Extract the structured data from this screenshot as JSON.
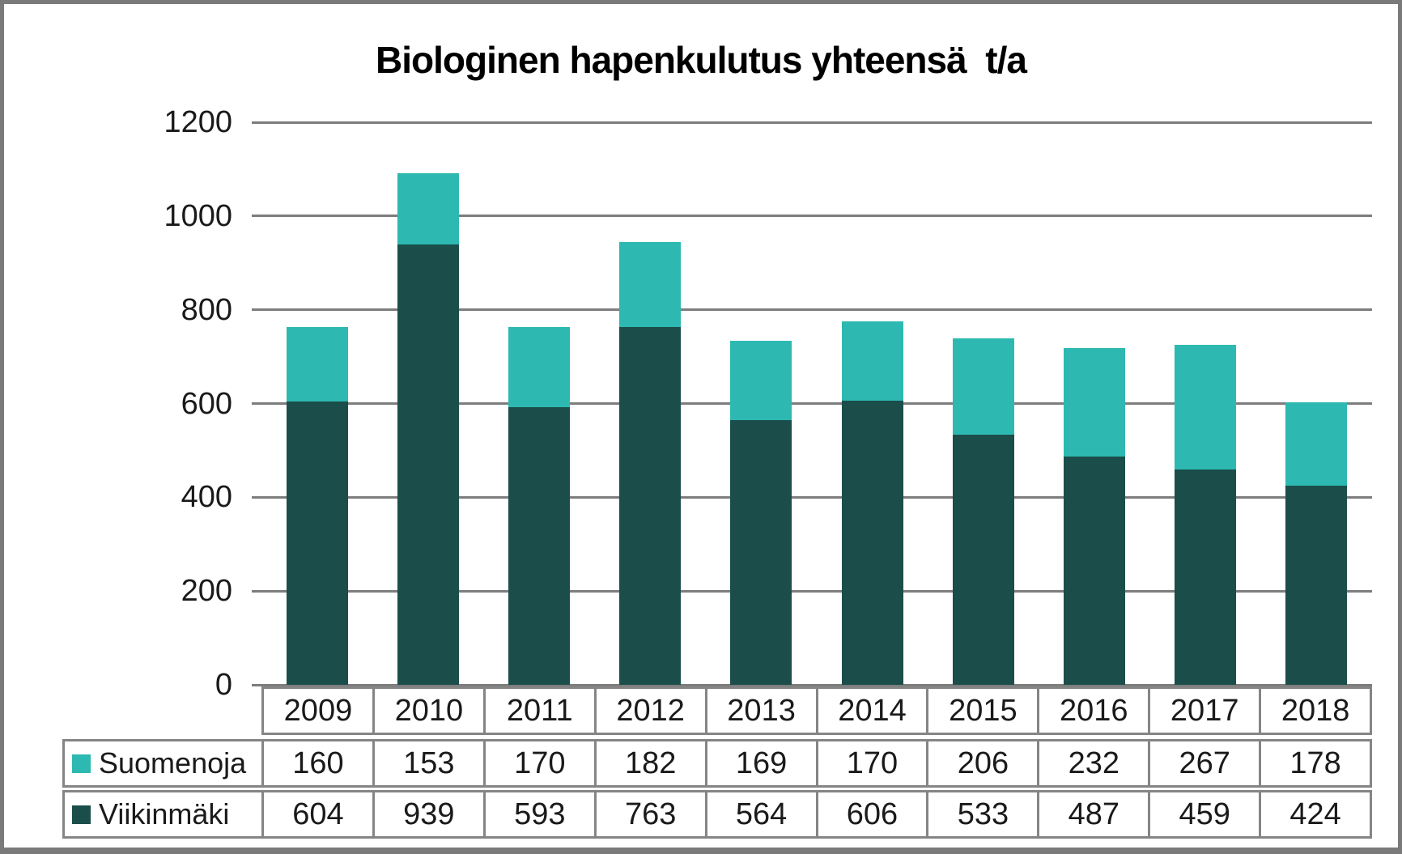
{
  "chart_data": {
    "type": "bar",
    "stacked": true,
    "title": "Biologinen hapenkulutus yhteensä  t/a",
    "categories": [
      "2009",
      "2010",
      "2011",
      "2012",
      "2013",
      "2014",
      "2015",
      "2016",
      "2017",
      "2018"
    ],
    "series": [
      {
        "name": "Suomenoja",
        "color": "#2DB9B2",
        "values": [
          160,
          153,
          170,
          182,
          169,
          170,
          206,
          232,
          267,
          178
        ]
      },
      {
        "name": "Viikinmäki",
        "color": "#1B4E4A",
        "values": [
          604,
          939,
          593,
          763,
          564,
          606,
          533,
          487,
          459,
          424
        ]
      }
    ],
    "stack_order_bottom_to_top": [
      "Viikinmäki",
      "Suomenoja"
    ],
    "xlabel": "",
    "ylabel": "",
    "ylim": [
      0,
      1200
    ],
    "ytick_step": 200,
    "y_tick_labels": [
      "0",
      "200",
      "400",
      "600",
      "800",
      "1000",
      "1200"
    ],
    "grid": true,
    "legend_position": "data-table-left",
    "gridline_color": "#7d7d7d",
    "table_border_color": "#858585"
  }
}
